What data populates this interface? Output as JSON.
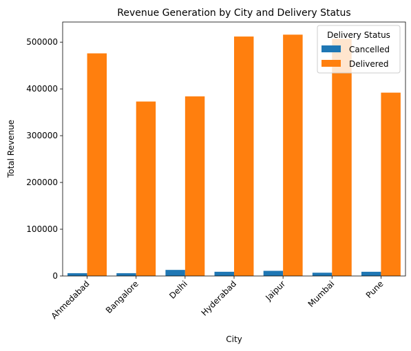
{
  "chart_data": {
    "type": "bar",
    "title": "Revenue Generation by City and Delivery Status",
    "xlabel": "City",
    "ylabel": "Total Revenue",
    "categories": [
      "Ahmedabad",
      "Bangalore",
      "Delhi",
      "Hyderabad",
      "Jaipur",
      "Mumbai",
      "Pune"
    ],
    "series": [
      {
        "name": "Cancelled",
        "color": "#1f77b4",
        "values": [
          6000,
          6000,
          13000,
          9000,
          11000,
          7000,
          9000
        ]
      },
      {
        "name": "Delivered",
        "color": "#ff7f0e",
        "values": [
          476000,
          373000,
          384000,
          512000,
          516000,
          507000,
          392000
        ]
      }
    ],
    "ylim": [
      0,
      543000
    ],
    "yticks": [
      0,
      100000,
      200000,
      300000,
      400000,
      500000
    ],
    "legend": {
      "title": "Delivery Status",
      "placement": "top-right"
    },
    "grid": false
  }
}
